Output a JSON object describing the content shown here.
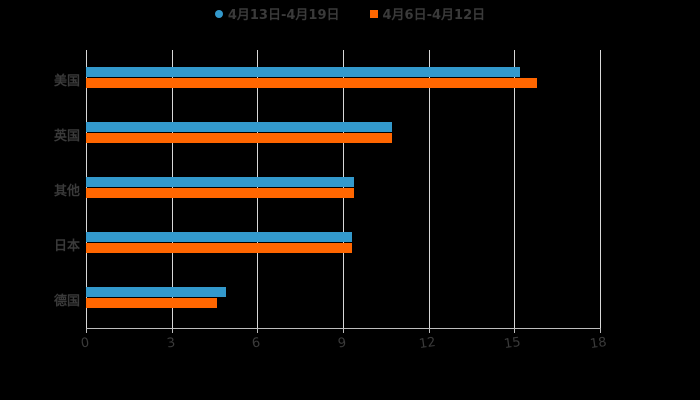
{
  "chart_data": {
    "type": "bar",
    "orientation": "horizontal",
    "title": "",
    "xlabel": "",
    "ylabel": "",
    "categories": [
      "美国",
      "英国",
      "其他",
      "日本",
      "德国"
    ],
    "series": [
      {
        "name": "4月13日-4月19日",
        "color": "#3399CC",
        "values": [
          15.2,
          10.7,
          9.4,
          9.3,
          4.9
        ]
      },
      {
        "name": "4月6日-4月12日",
        "color": "#FF6600",
        "values": [
          15.8,
          10.7,
          9.4,
          9.3,
          4.6
        ]
      }
    ],
    "xlim": [
      0,
      18
    ],
    "xticks": [
      "0",
      "3",
      "6",
      "9",
      "12",
      "15",
      "18"
    ],
    "grid": true,
    "legend_position": "top",
    "background": "#000000"
  }
}
